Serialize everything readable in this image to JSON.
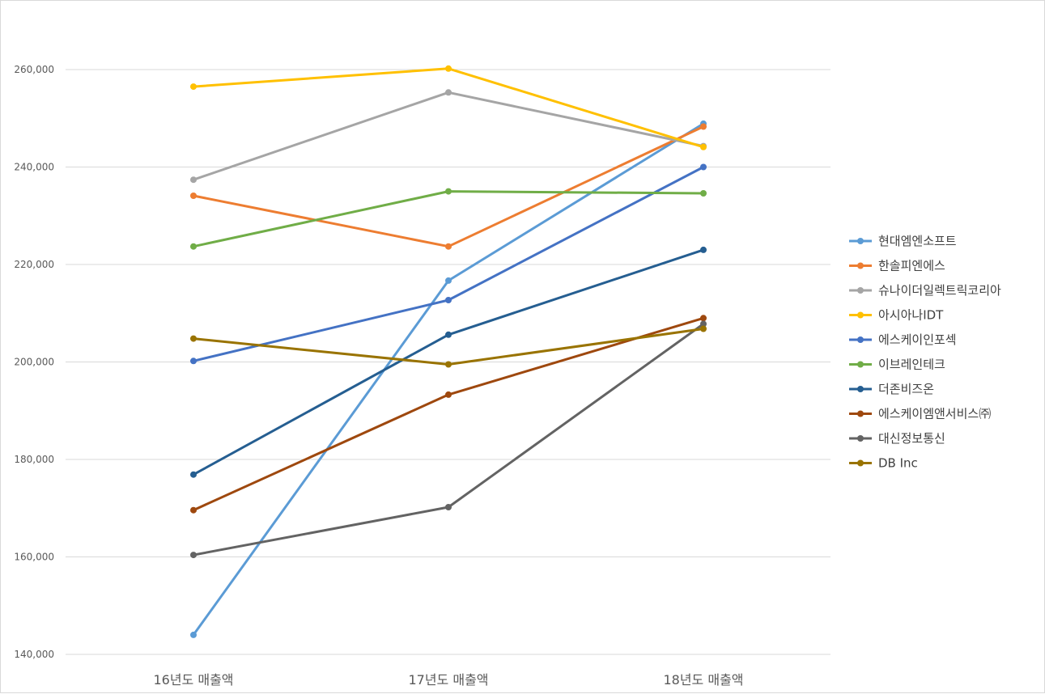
{
  "chart_data": {
    "type": "line",
    "categories": [
      "16년도 매출액",
      "17년도 매출액",
      "18년도 매출액"
    ],
    "ylim": [
      140000,
      270000
    ],
    "yticks": [
      140000,
      160000,
      180000,
      200000,
      220000,
      240000,
      260000
    ],
    "ytick_labels": [
      "140,000",
      "160,000",
      "180,000",
      "200,000",
      "220,000",
      "240,000",
      "260,000"
    ],
    "grid": true,
    "legend_position": "right",
    "series": [
      {
        "name": "현대엠엔소프트",
        "color": "#5B9BD5",
        "values": [
          144000,
          216700,
          248900
        ]
      },
      {
        "name": "한솔피엔에스",
        "color": "#ED7D31",
        "values": [
          234100,
          223700,
          248300
        ]
      },
      {
        "name": "슈나이더일렉트릭코리아",
        "color": "#A5A5A5",
        "values": [
          237400,
          255300,
          244300
        ]
      },
      {
        "name": "아시아나IDT",
        "color": "#FFC000",
        "values": [
          256500,
          260200,
          244100
        ]
      },
      {
        "name": "에스케이인포섹",
        "color": "#4472C4",
        "values": [
          200200,
          212700,
          240000
        ]
      },
      {
        "name": "이브레인테크",
        "color": "#70AD47",
        "values": [
          223700,
          235000,
          234600
        ]
      },
      {
        "name": "더존비즈온",
        "color": "#255E91",
        "values": [
          176900,
          205600,
          223000
        ]
      },
      {
        "name": "에스케이엠앤서비스㈜",
        "color": "#9E480E",
        "values": [
          169600,
          193300,
          209000
        ]
      },
      {
        "name": "대신정보통신",
        "color": "#636363",
        "values": [
          160400,
          170200,
          207800
        ]
      },
      {
        "name": "DB Inc",
        "color": "#997300",
        "values": [
          204800,
          199500,
          206800
        ]
      }
    ]
  }
}
